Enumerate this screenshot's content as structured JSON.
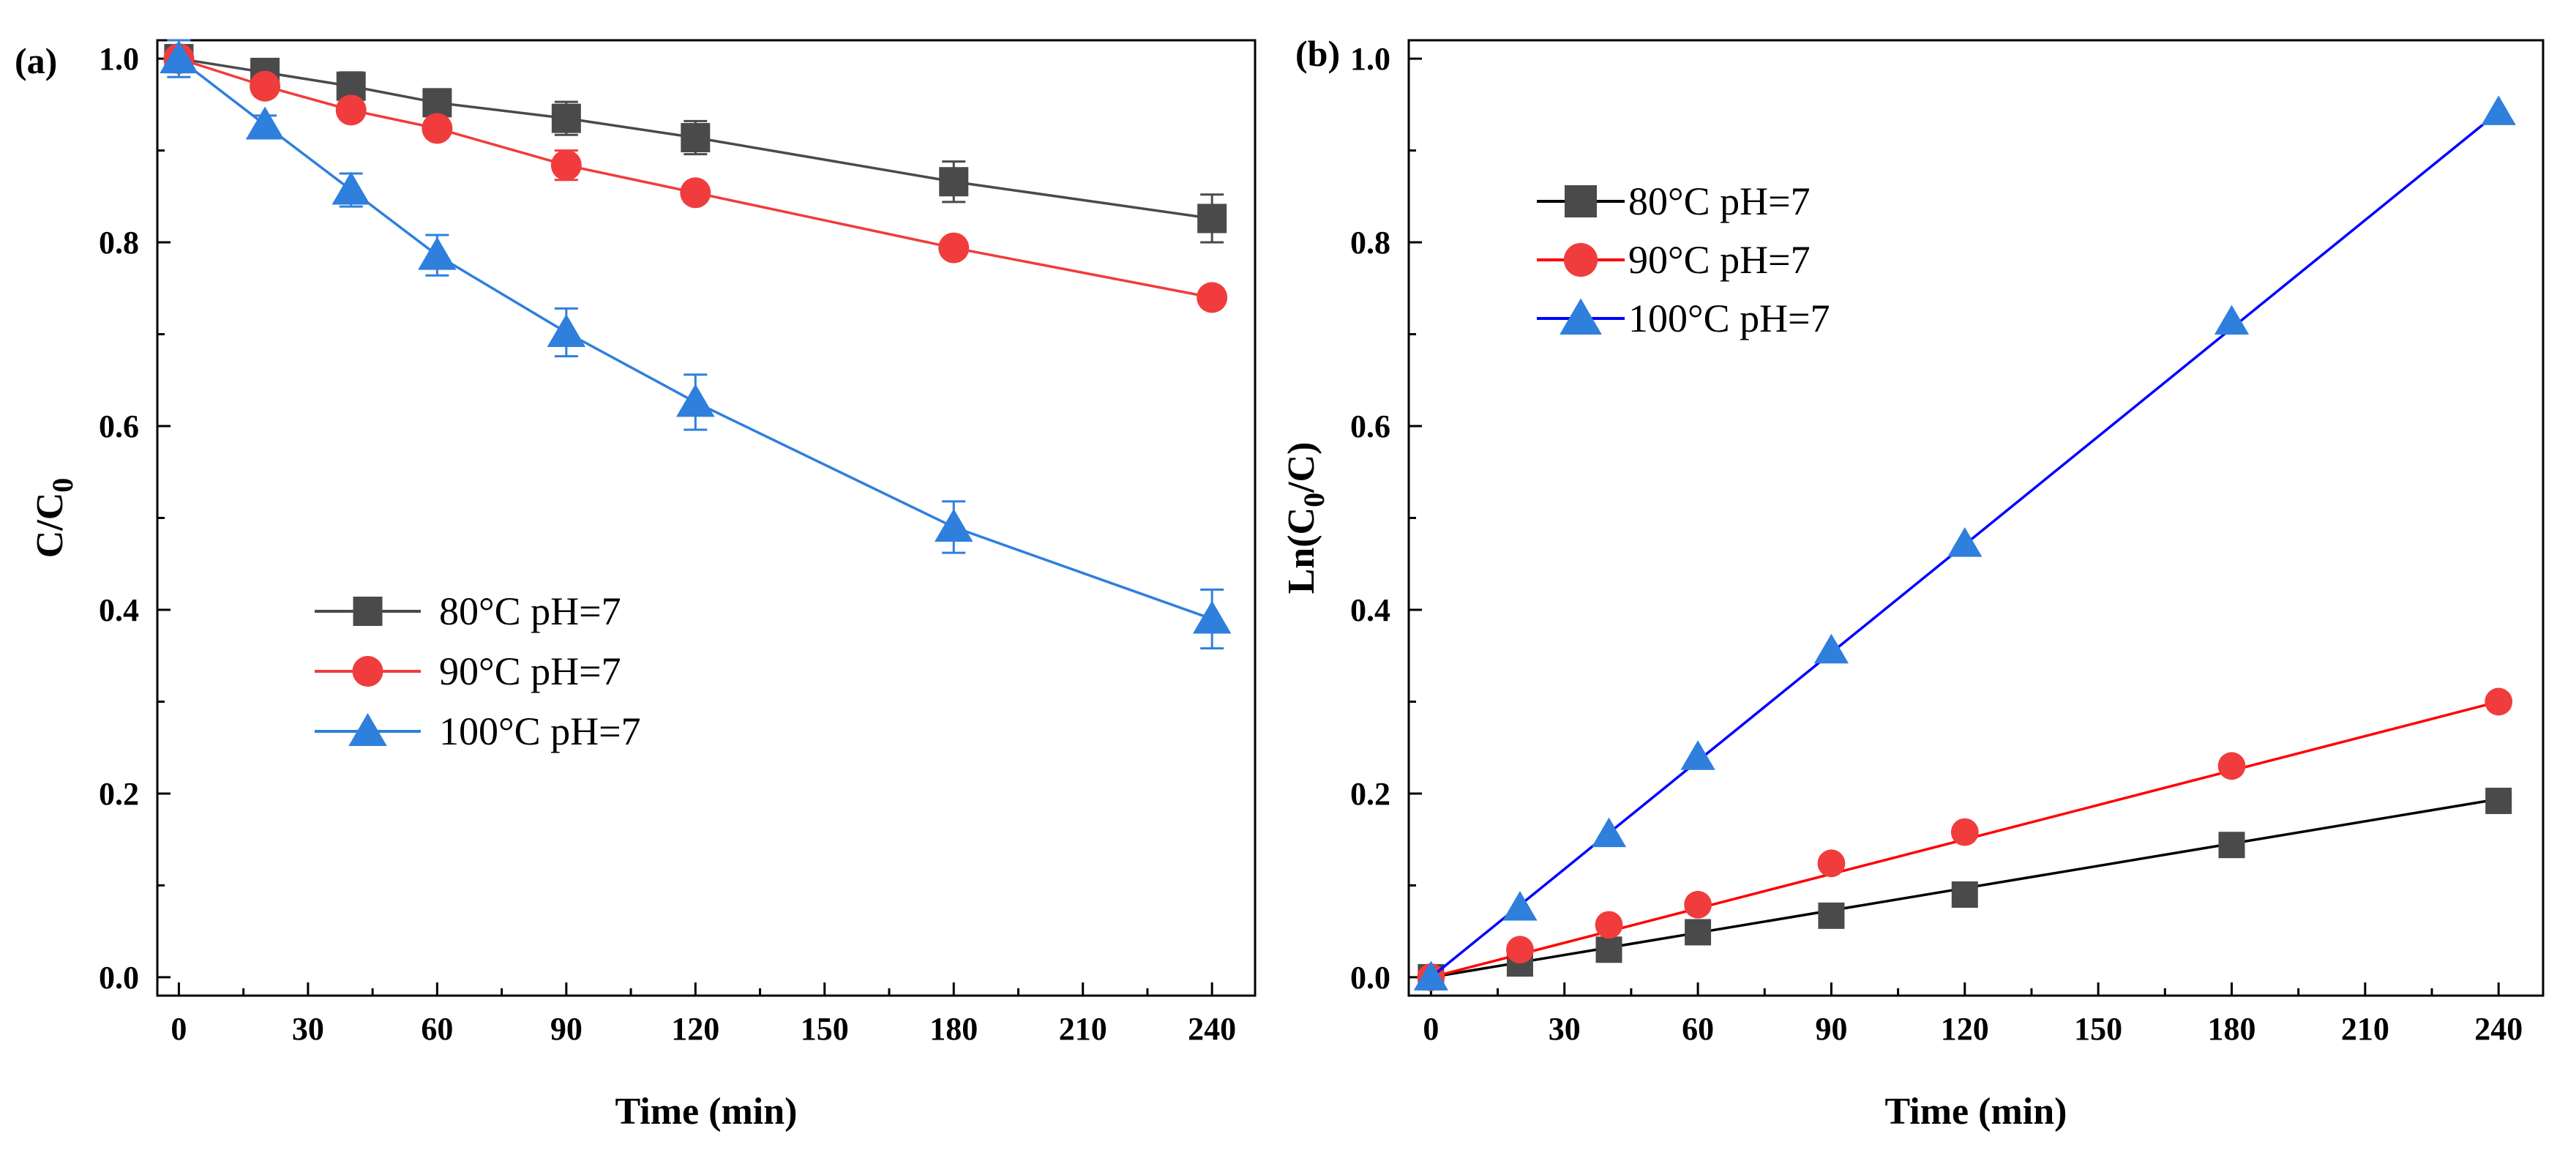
{
  "chart_data": [
    {
      "panel_label": "(a)",
      "type": "line",
      "xlabel": "Time (min)",
      "ylabel_main": "C/C",
      "ylabel_sub": "0",
      "xlim": [
        -5,
        250
      ],
      "ylim": [
        -0.02,
        1.02
      ],
      "xticks": [
        0,
        30,
        60,
        90,
        120,
        150,
        180,
        210,
        240
      ],
      "yticks": [
        0.0,
        0.2,
        0.4,
        0.6,
        0.8,
        1.0
      ],
      "ytick_labels": [
        "0.0",
        "0.2",
        "0.4",
        "0.6",
        "0.8",
        "1.0"
      ],
      "legend_position": "lower-left",
      "series": [
        {
          "name": "80°C   pH=7",
          "color": "#4a4a4a",
          "marker": "square",
          "x": [
            0,
            20,
            40,
            60,
            90,
            120,
            180,
            240
          ],
          "y": [
            1.0,
            0.985,
            0.97,
            0.952,
            0.935,
            0.914,
            0.866,
            0.826
          ],
          "err": [
            0.01,
            0.01,
            0.015,
            0.012,
            0.018,
            0.018,
            0.022,
            0.026
          ]
        },
        {
          "name": "90°C   pH=7",
          "color": "#f03c3c",
          "marker": "circle",
          "x": [
            0,
            20,
            40,
            60,
            90,
            120,
            180,
            240
          ],
          "y": [
            1.0,
            0.97,
            0.944,
            0.924,
            0.884,
            0.854,
            0.794,
            0.74
          ],
          "err": [
            0.01,
            0.01,
            0.01,
            0.01,
            0.016,
            0.01,
            0.01,
            0.01
          ]
        },
        {
          "name": "100°C pH=7",
          "color": "#2f7fdc",
          "marker": "triangle",
          "x": [
            0,
            20,
            40,
            60,
            90,
            120,
            180,
            240
          ],
          "y": [
            1.0,
            0.928,
            0.857,
            0.786,
            0.702,
            0.626,
            0.49,
            0.39
          ],
          "err": [
            0.02,
            0.01,
            0.018,
            0.022,
            0.026,
            0.03,
            0.028,
            0.032
          ]
        }
      ]
    },
    {
      "panel_label": "(b)",
      "type": "line",
      "xlabel": "Time (min)",
      "ylabel_pre": "Ln(C",
      "ylabel_sub": "0",
      "ylabel_post": "/C)",
      "xlim": [
        -5,
        250
      ],
      "ylim": [
        -0.02,
        1.02
      ],
      "xticks": [
        0,
        30,
        60,
        90,
        120,
        150,
        180,
        210,
        240
      ],
      "yticks": [
        0.0,
        0.2,
        0.4,
        0.6,
        0.8,
        1.0
      ],
      "ytick_labels": [
        "0.0",
        "0.2",
        "0.4",
        "0.6",
        "0.8",
        "1.0"
      ],
      "legend_position": "top-left",
      "series": [
        {
          "name": "80°C   pH=7",
          "color": "#000000",
          "marker_color": "#4a4a4a",
          "marker": "square",
          "x": [
            0,
            20,
            40,
            60,
            90,
            120,
            180,
            240
          ],
          "y": [
            0.0,
            0.015,
            0.03,
            0.049,
            0.067,
            0.09,
            0.144,
            0.192
          ],
          "fit": [
            0.0,
            0.194
          ]
        },
        {
          "name": "90°C   pH=7",
          "color": "#ff0000",
          "marker_color": "#f03c3c",
          "marker": "circle",
          "x": [
            0,
            20,
            40,
            60,
            90,
            120,
            180,
            240
          ],
          "y": [
            0.0,
            0.03,
            0.057,
            0.079,
            0.124,
            0.158,
            0.23,
            0.3
          ],
          "fit": [
            0.0,
            0.3
          ]
        },
        {
          "name": "100°C pH=7",
          "color": "#0000ff",
          "marker_color": "#2f7fdc",
          "marker": "triangle",
          "x": [
            0,
            20,
            40,
            60,
            90,
            120,
            180,
            240
          ],
          "y": [
            0.0,
            0.076,
            0.156,
            0.24,
            0.356,
            0.472,
            0.714,
            0.942
          ],
          "fit": [
            0.0,
            0.942
          ]
        }
      ]
    }
  ]
}
